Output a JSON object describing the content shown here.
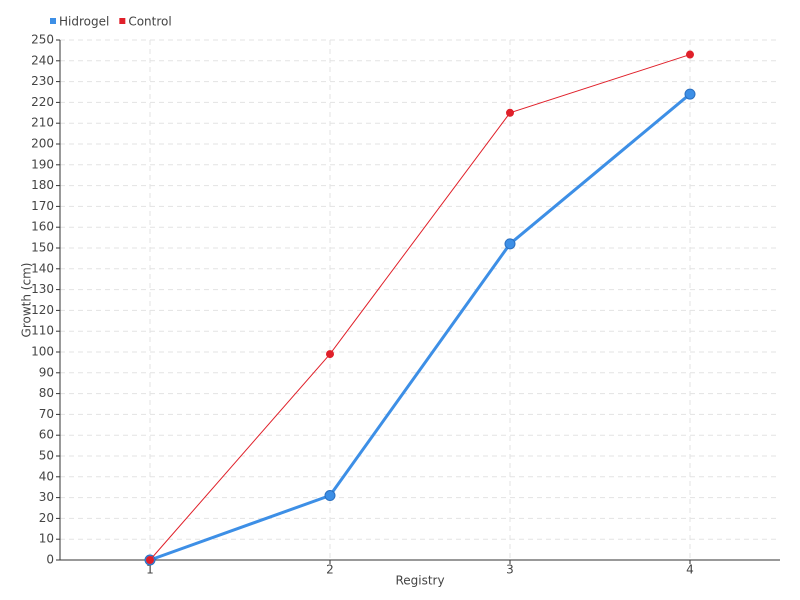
{
  "chart_data": {
    "type": "line",
    "x_label": "Registry",
    "y_label": "Growth (cm)",
    "categories": [
      "1",
      "2",
      "3",
      "4"
    ],
    "series": [
      {
        "name": "Hidrogel",
        "color": "#3d8fe6",
        "values": [
          0,
          31,
          152,
          224
        ]
      },
      {
        "name": "Control",
        "color": "#e0202a",
        "values": [
          0,
          99,
          215,
          243
        ]
      }
    ],
    "ylim": [
      0,
      250
    ],
    "yticks": [
      0,
      10,
      20,
      30,
      40,
      50,
      60,
      70,
      80,
      90,
      100,
      110,
      120,
      130,
      140,
      150,
      160,
      170,
      180,
      190,
      200,
      210,
      220,
      230,
      240,
      250
    ],
    "grid": true,
    "legend": "top-left"
  }
}
